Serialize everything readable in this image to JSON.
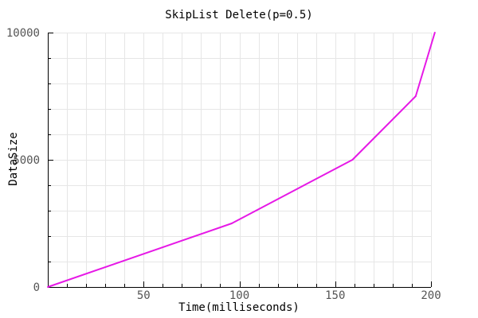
{
  "chart_data": {
    "type": "line",
    "title": "SkipList Delete(p=0.5)",
    "xlabel": "Time(milliseconds)",
    "ylabel": "DataSize",
    "xlim": [
      0,
      200
    ],
    "ylim": [
      0,
      10000
    ],
    "x_major_ticks": [
      50,
      100,
      150,
      200
    ],
    "y_major_ticks": [
      0,
      5000,
      10000
    ],
    "grid": true,
    "series": [
      {
        "color": "#e619e6",
        "points": [
          {
            "x": 0,
            "y": 0
          },
          {
            "x": 96,
            "y": 2500
          },
          {
            "x": 159,
            "y": 5000
          },
          {
            "x": 192,
            "y": 7500
          },
          {
            "x": 202,
            "y": 10000
          }
        ]
      }
    ]
  }
}
